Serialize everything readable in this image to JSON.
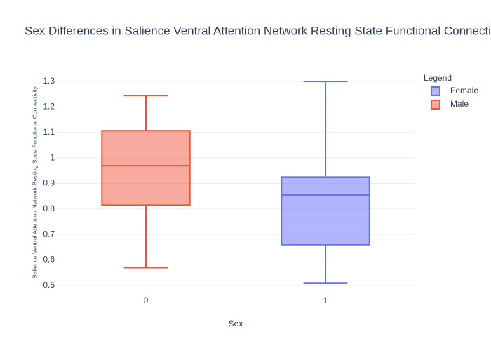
{
  "chart_data": {
    "type": "box",
    "title": "Sex Differences in Salience Ventral Attention Network Resting State Functional Connectivity",
    "x_label": "Sex",
    "y_label": "Salience Ventral Attention Network Resting State Functional Connectivity",
    "categories": [
      "0",
      "1"
    ],
    "legend_title": "Legend",
    "series": [
      {
        "name": "Female",
        "color": "#636efa",
        "category": "1",
        "min": 0.51,
        "q1": 0.66,
        "median": 0.855,
        "q3": 0.925,
        "max": 1.3
      },
      {
        "name": "Male",
        "color": "#EF553B",
        "category": "0",
        "min": 0.57,
        "q1": 0.815,
        "median": 0.97,
        "q3": 1.107,
        "max": 1.245
      }
    ],
    "ylim": [
      0.464,
      1.344
    ],
    "yticks": [
      0.5,
      0.6,
      0.7,
      0.8,
      0.9,
      1,
      1.1,
      1.2,
      1.3
    ],
    "grid": true,
    "legend_position": "right"
  }
}
